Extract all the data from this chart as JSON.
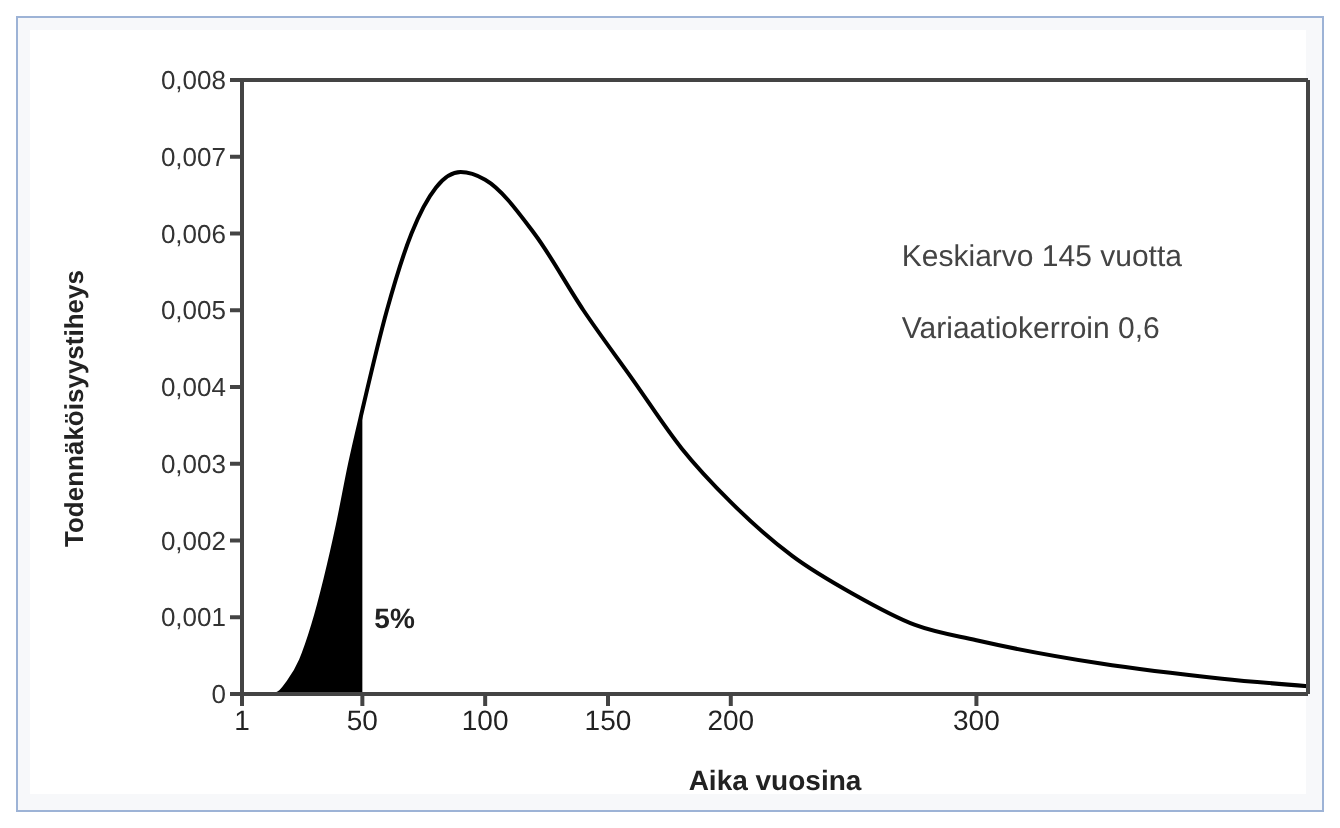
{
  "chart_data": {
    "type": "line",
    "xlabel": "Aika vuosina",
    "ylabel": "Todennäköisyystiheys",
    "xlim": [
      1,
      435
    ],
    "xticks": [
      1,
      50,
      100,
      150,
      200,
      300
    ],
    "ylim": [
      0,
      0.008
    ],
    "yticks": [
      {
        "value": 0,
        "label": "0"
      },
      {
        "value": 0.001,
        "label": "0,001"
      },
      {
        "value": 0.002,
        "label": "0,002"
      },
      {
        "value": 0.003,
        "label": "0,003"
      },
      {
        "value": 0.004,
        "label": "0,004"
      },
      {
        "value": 0.005,
        "label": "0,005"
      },
      {
        "value": 0.006,
        "label": "0,006"
      },
      {
        "value": 0.007,
        "label": "0,007"
      },
      {
        "value": 0.008,
        "label": "0,008"
      }
    ],
    "marker": "none",
    "line_style": "solid",
    "series": [
      {
        "color": "#000000",
        "x": [
          1,
          10,
          15,
          20,
          25,
          30,
          35,
          40,
          45,
          50,
          60,
          70,
          80,
          90,
          100,
          120,
          140,
          160,
          180,
          200,
          225,
          250,
          275,
          300,
          350,
          400,
          435
        ],
        "values": [
          0,
          0,
          0,
          0.00016,
          0.00044,
          0.0009,
          0.0015,
          0.0022,
          0.003,
          0.0037,
          0.005,
          0.006,
          0.0066,
          0.0068,
          0.0067,
          0.006,
          0.005,
          0.0041,
          0.0032,
          0.0025,
          0.0018,
          0.0013,
          0.0009,
          0.0007,
          0.0004,
          0.0002,
          0.0001
        ]
      },
      {
        "type": "area",
        "color": "#000000",
        "x": [
          10,
          15,
          20,
          25,
          30,
          35,
          40,
          45,
          50
        ],
        "values": [
          0,
          0,
          0.00016,
          0.00044,
          0.0009,
          0.0015,
          0.0022,
          0.003,
          0.0037
        ]
      }
    ],
    "annotations": [
      "5%",
      "Keskiarvo 145 vuotta",
      "Variaatiokerroin 0,6"
    ]
  }
}
